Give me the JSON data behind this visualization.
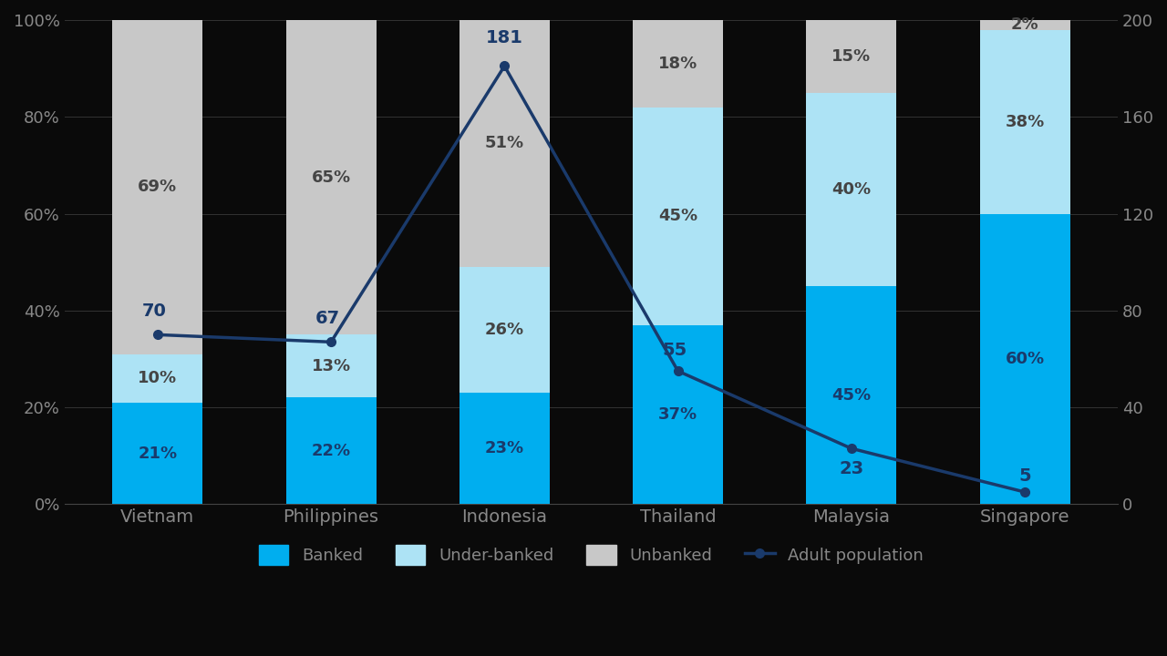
{
  "categories": [
    "Vietnam",
    "Philippines",
    "Indonesia",
    "Thailand",
    "Malaysia",
    "Singapore"
  ],
  "banked_pct": [
    21,
    22,
    23,
    37,
    45,
    60
  ],
  "underbanked_pct": [
    10,
    13,
    26,
    45,
    40,
    38
  ],
  "unbanked_pct": [
    69,
    65,
    51,
    18,
    15,
    2
  ],
  "adult_population_M": [
    70,
    67,
    181,
    55,
    23,
    5
  ],
  "banked_color": "#00AEEF",
  "underbanked_color": "#ADE3F5",
  "unbanked_color": "#C8C8C8",
  "line_color": "#1A3A6B",
  "text_color_on_gray": "#444444",
  "text_color_on_blue": "#1A3A6B",
  "text_color_on_lightblue": "#444444",
  "text_color_on_darkblue": "#1A3A6B",
  "background_color": "#0A0A0A",
  "axes_background": "#0A0A0A",
  "tick_color": "#888888",
  "grid_color": "#444444",
  "left_ylim": [
    0,
    100
  ],
  "right_ylim": [
    0,
    200
  ],
  "left_yticks": [
    0,
    20,
    40,
    60,
    80,
    100
  ],
  "left_yticklabels": [
    "0%",
    "20%",
    "40%",
    "60%",
    "80%",
    "100%"
  ],
  "right_yticks": [
    0,
    40,
    80,
    120,
    160,
    200
  ],
  "right_yticklabels": [
    "0",
    "40",
    "80",
    "120",
    "160",
    "200"
  ],
  "legend_items": [
    "Banked",
    "Under-banked",
    "Unbanked",
    "Adult population"
  ],
  "bar_width": 0.52,
  "font_size_ticks": 13,
  "font_size_labels": 14,
  "font_size_bar_labels": 13,
  "font_size_pop_labels": 14,
  "font_size_legend": 13,
  "pop_label_offsets": [
    [
      -0.02,
      6,
      "center"
    ],
    [
      -0.02,
      6,
      "center"
    ],
    [
      0.0,
      8,
      "center"
    ],
    [
      -0.02,
      5,
      "center"
    ],
    [
      0.0,
      -12,
      "center"
    ],
    [
      0.0,
      3,
      "center"
    ]
  ]
}
